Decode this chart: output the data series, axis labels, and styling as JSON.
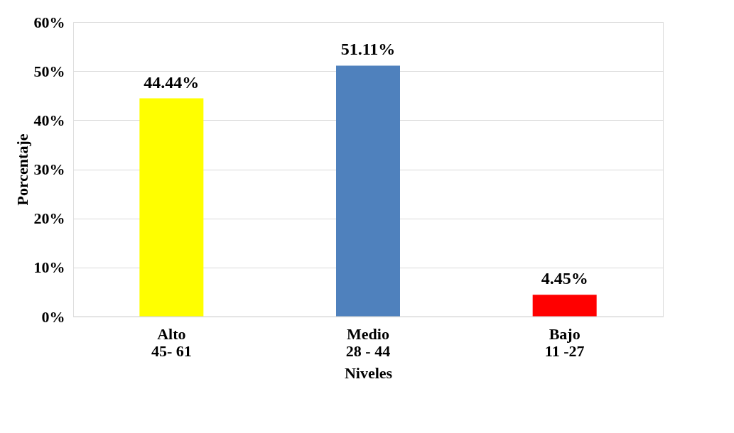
{
  "chart_data": {
    "type": "bar",
    "xlabel": "Niveles",
    "ylabel": "Porcentaje",
    "categories": [
      "Alto\n45- 61",
      "Medio\n28 - 44",
      "Bajo\n11 -27"
    ],
    "values": [
      44.44,
      51.11,
      4.45
    ],
    "colors": [
      "#ffff00",
      "#4f81bd",
      "#ff0000"
    ],
    "value_labels": [
      "44.44%",
      "51.11%",
      "4.45%"
    ],
    "ylim": [
      0,
      60
    ],
    "yticks": [
      {
        "value": 0,
        "label": "0%"
      },
      {
        "value": 10,
        "label": "10%"
      },
      {
        "value": 20,
        "label": "20%"
      },
      {
        "value": 30,
        "label": "30%"
      },
      {
        "value": 40,
        "label": "40%"
      },
      {
        "value": 50,
        "label": "50%"
      },
      {
        "value": 60,
        "label": "60%"
      }
    ],
    "grid": "y"
  }
}
